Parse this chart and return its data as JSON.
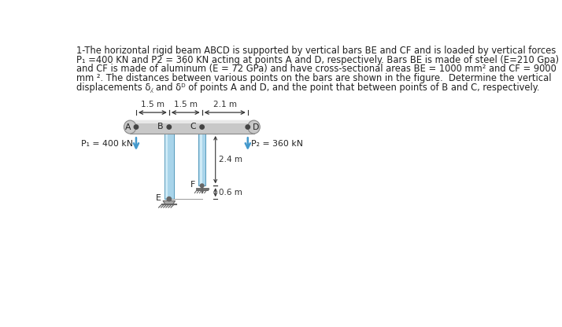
{
  "line1": "1-The horizontal rigid beam ABCD is supported by vertical bars BE and CF and is loaded by vertical forces",
  "line2": "P₁ =400 KN and P2 = 360 KN acting at points A and D, respectively. Bars BE is made of steel (E=210 Gpa)",
  "line3": "and CF is made of aluminum (E = 72 GPa) and have cross-sectional areas BE = 1000 mm² and CF = 9000",
  "line4": "mm ². The distances between various points on the bars are shown in the figure.  Determine the vertical",
  "line5": "displacements δ⁁ and δᴰ of points A and D, and the point that between points of B and C, respectively.",
  "beam_color": "#c8c8c8",
  "beam_edge": "#888888",
  "bar_fill": "#a8d4ea",
  "bar_highlight": "#d8f0fa",
  "bar_edge": "#5599bb",
  "background": "#ffffff",
  "text_color": "#222222",
  "dim_color": "#333333",
  "arrow_color": "#4499cc",
  "support_color": "#666666",
  "dim_1": "1.5 m",
  "dim_2": "1.5 m",
  "dim_3": "2.1 m",
  "label_A": "A",
  "label_B": "B",
  "label_C": "C",
  "label_D": "D",
  "label_E": "E",
  "label_F": "F",
  "label_P1": "P₁ = 400 kN",
  "label_P2": "P₂ = 360 kN",
  "label_24m": "2.4 m",
  "label_06m": "0.6 m",
  "text_fontsize": 8.3,
  "label_fontsize": 7.8,
  "dim_fontsize": 7.5
}
